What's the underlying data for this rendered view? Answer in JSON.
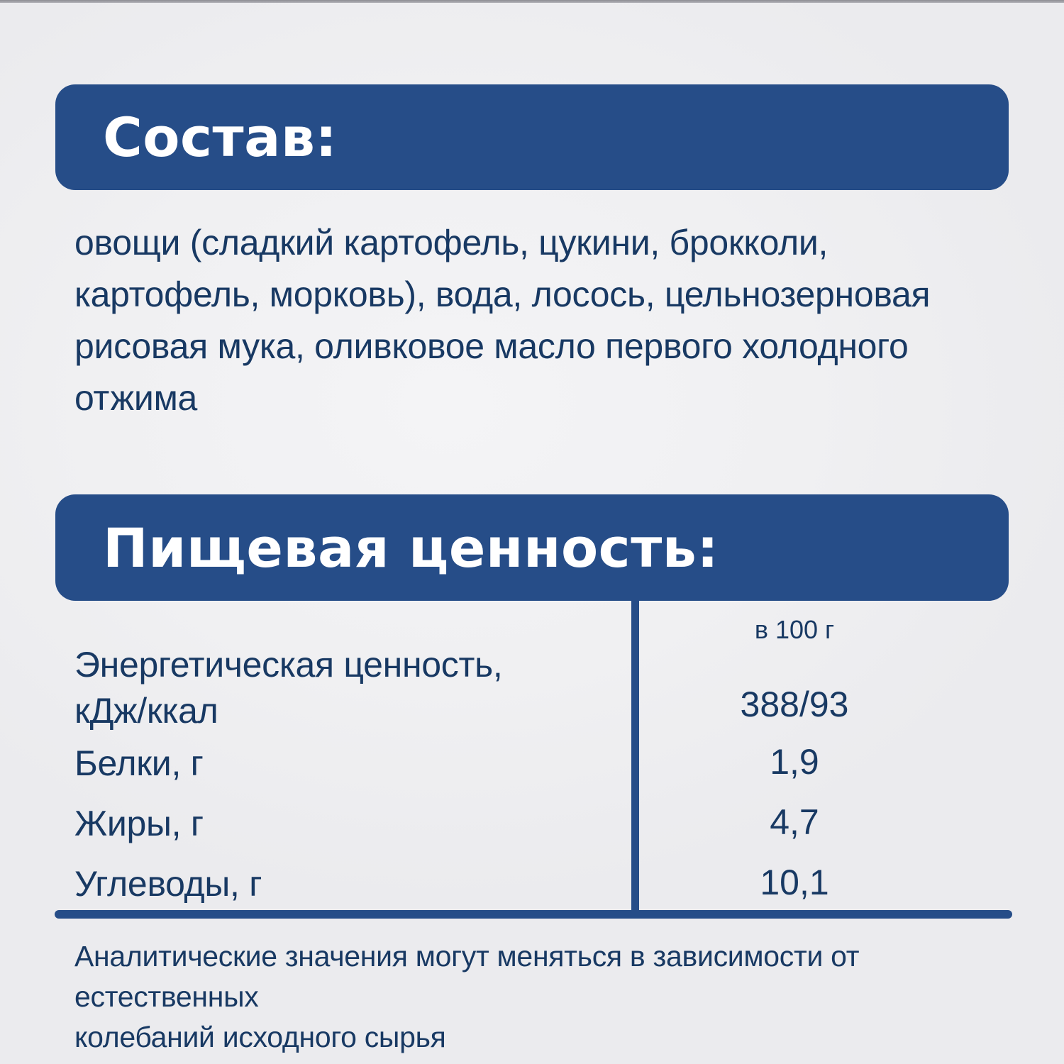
{
  "page": {
    "background_color": "#f0f0f2",
    "accent_color": "#264d88",
    "text_color": "#183963"
  },
  "ingredients": {
    "header": "Состав:",
    "text_lines": [
      "овощи (сладкий картофель, цукини, брокколи,",
      "картофель, морковь), вода, лосось, цельнозерновая",
      "рисовая мука, оливковое масло первого холодного",
      "отжима"
    ]
  },
  "nutrition": {
    "header": "Пищевая ценность:",
    "column_header": "в 100 г",
    "rows": [
      {
        "label_lines": [
          "Энергетическая ценность,",
          "кДж/ккал"
        ],
        "value": "388/93"
      },
      {
        "label": "Белки, г",
        "value": "1,9"
      },
      {
        "label": "Жиры, г",
        "value": "4,7"
      },
      {
        "label": "Углеводы, г",
        "value": "10,1"
      }
    ],
    "footnote_lines": [
      "Аналитические значения могут меняться в зависимости от естественных",
      "колебаний исходного сырья"
    ]
  }
}
